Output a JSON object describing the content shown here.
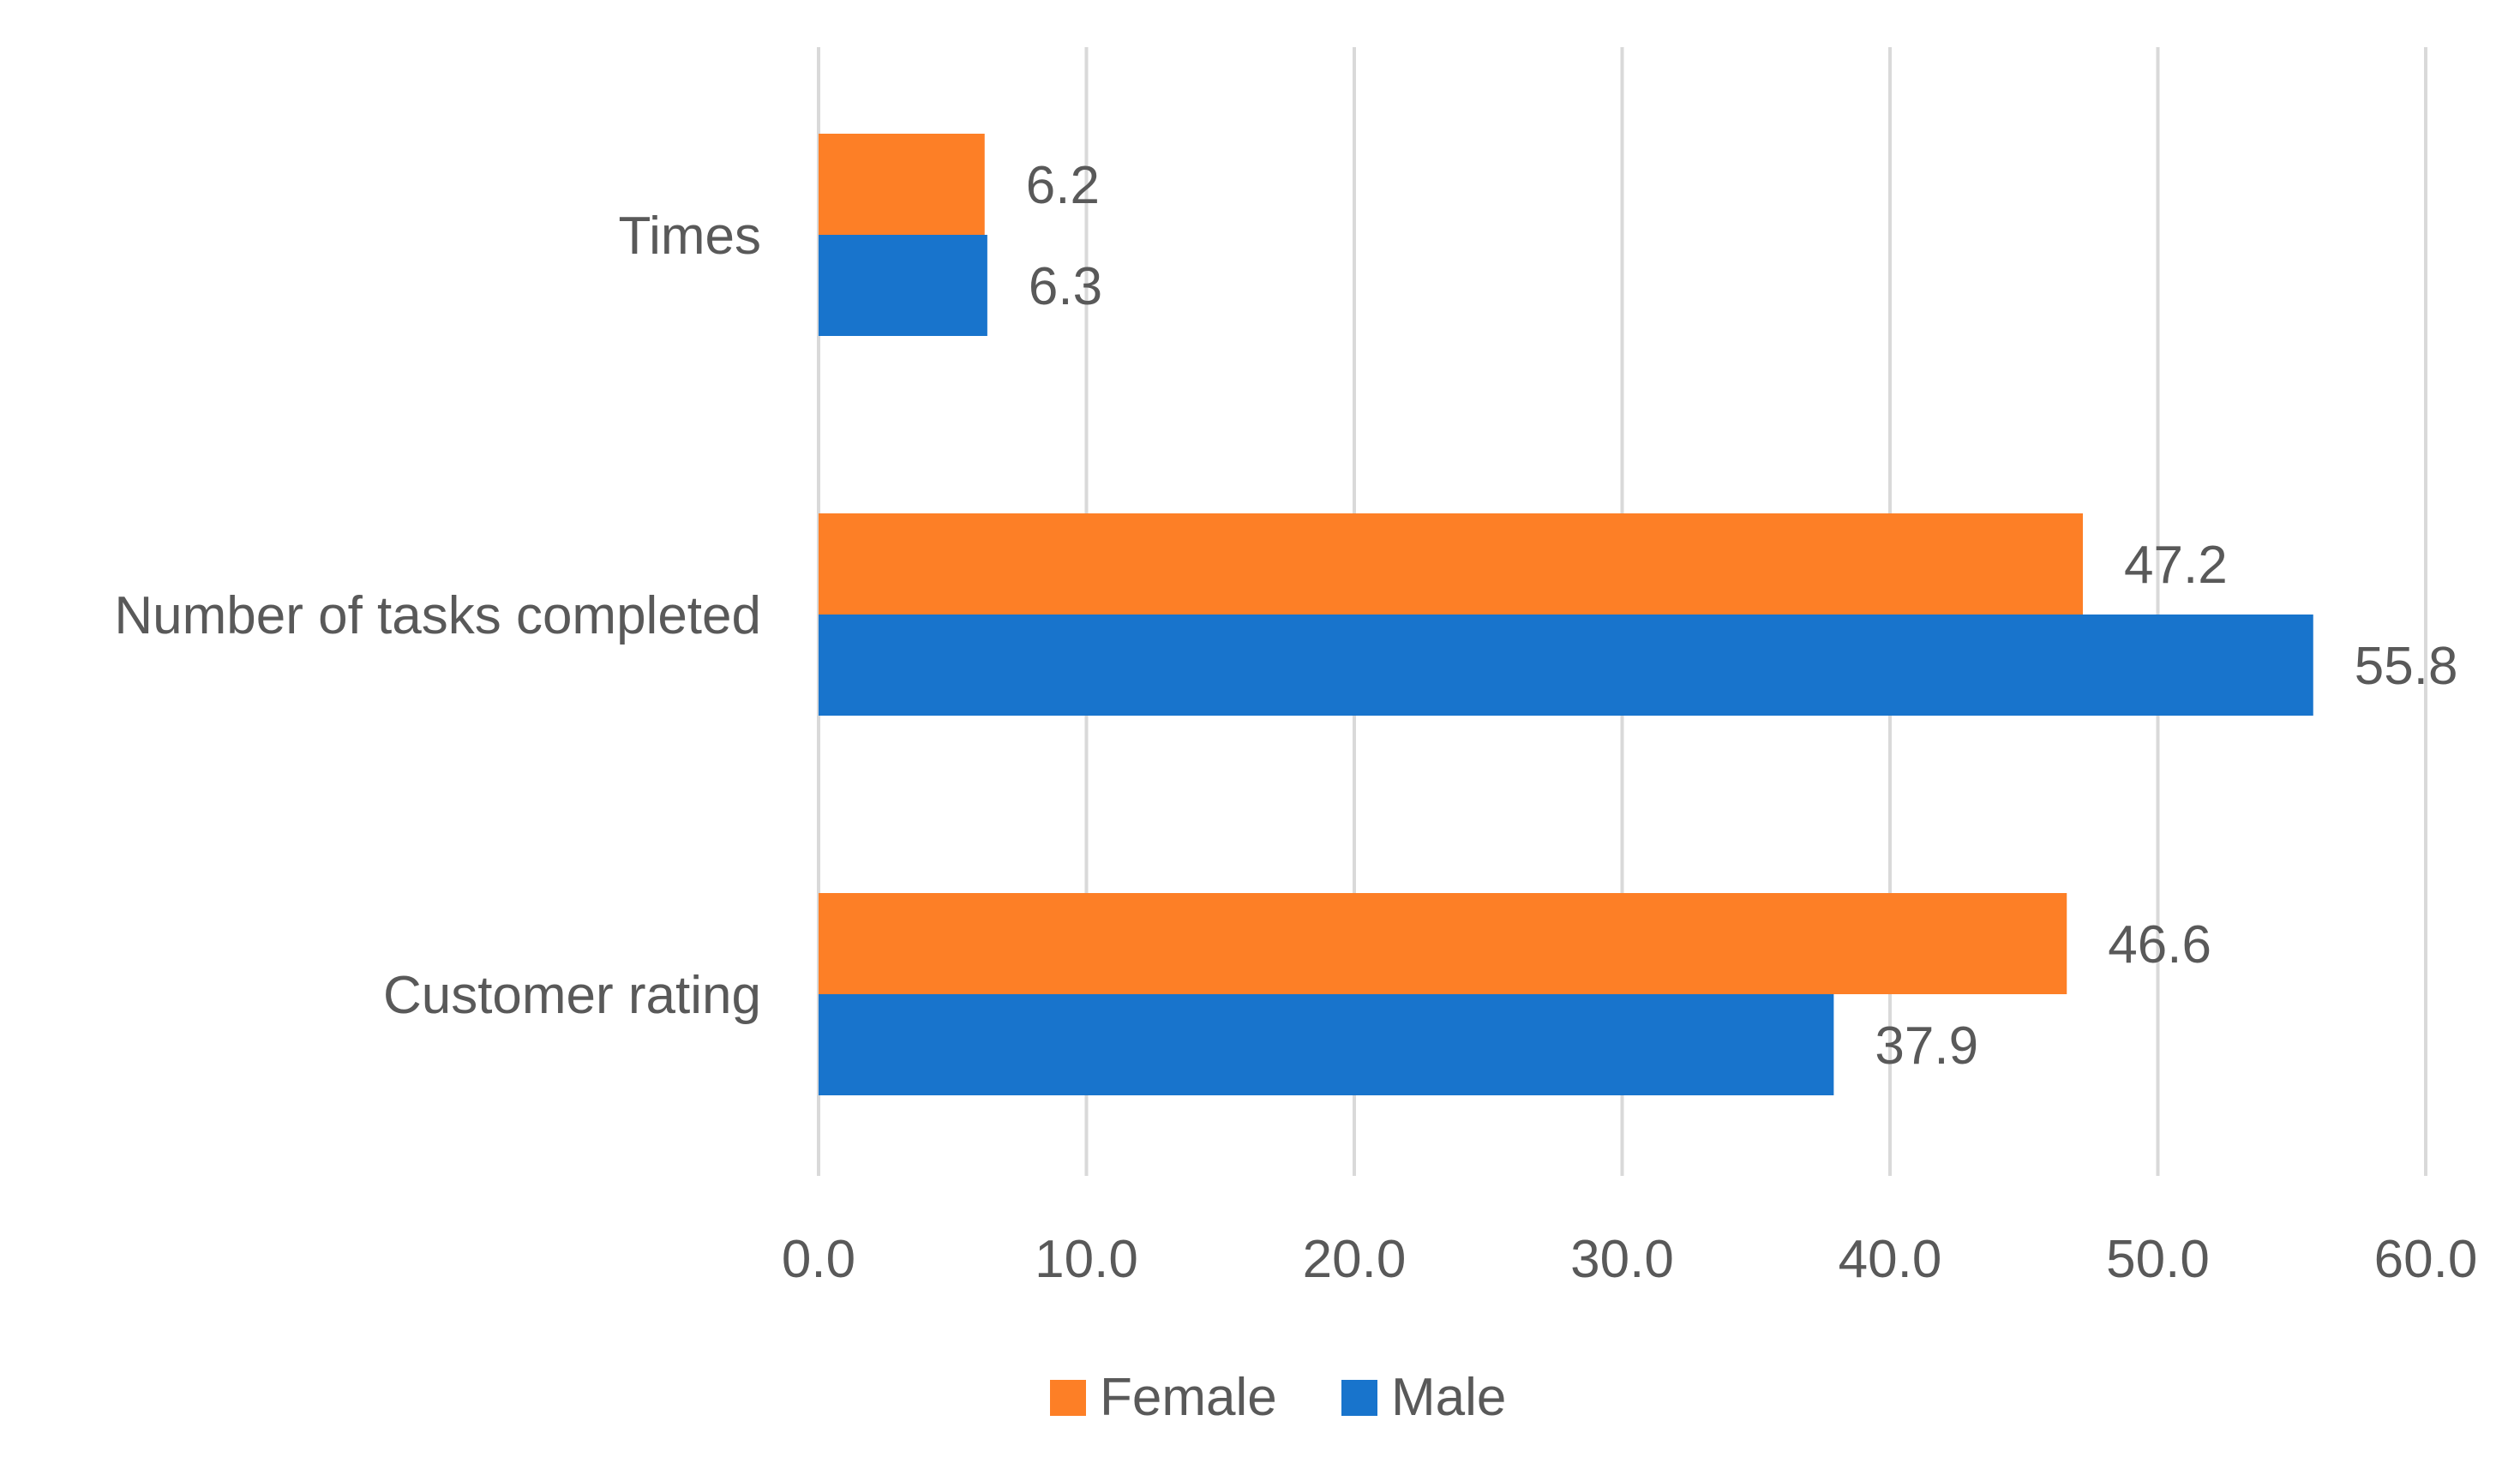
{
  "chart_data": {
    "type": "bar",
    "orientation": "horizontal",
    "title": "",
    "xlabel": "",
    "ylabel": "",
    "categories": [
      "Times",
      "Number of tasks completed",
      "Customer rating"
    ],
    "series": [
      {
        "name": "Female",
        "color": "#fd7f26",
        "values": [
          6.2,
          47.2,
          46.6
        ],
        "labels": [
          "6.2",
          "47.2",
          "46.6"
        ]
      },
      {
        "name": "Male",
        "color": "#1874cc",
        "values": [
          6.3,
          55.8,
          37.9
        ],
        "labels": [
          "6.3",
          "55.8",
          "37.9"
        ]
      }
    ],
    "xlim": [
      0,
      60
    ],
    "xticks": [
      0,
      10,
      20,
      30,
      40,
      50,
      60
    ],
    "xtick_labels": [
      "0.0",
      "10.0",
      "20.0",
      "30.0",
      "40.0",
      "50.0",
      "60.0"
    ],
    "grid": "vertical",
    "legend": {
      "position": "bottom",
      "entries": [
        "Female",
        "Male"
      ]
    }
  },
  "colors": {
    "female": "#fd7f26",
    "male": "#1874cc",
    "gridline": "#d9d9d9",
    "text": "#595959"
  }
}
